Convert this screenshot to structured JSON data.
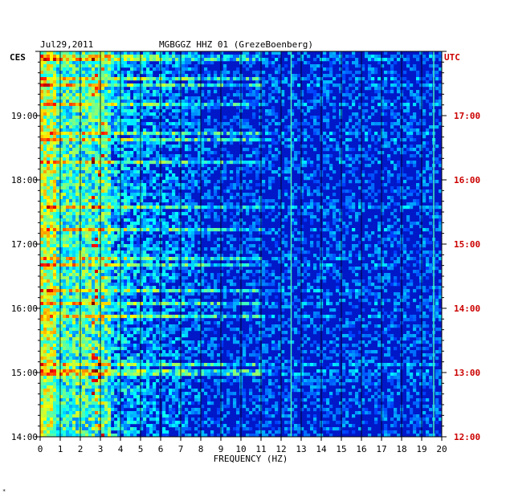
{
  "header": {
    "date": "Jul29,2011",
    "station": "MGBGGZ HHZ 01 (GrezeBoenberg)"
  },
  "left_tz": "CES",
  "right_tz": "UTC",
  "colors": {
    "background": "#ffffff",
    "spectrogram_base": "#0018c8",
    "grid": "#000000",
    "utc_text": "#cc0000",
    "text": "#000000"
  },
  "chart_data": {
    "type": "heatmap",
    "title": "MGBGGZ HHZ 01 (GrezeBoenberg)",
    "xlabel": "FREQUENCY (HZ)",
    "xlim": [
      0,
      20
    ],
    "x_ticks": [
      0,
      1,
      2,
      3,
      4,
      5,
      6,
      7,
      8,
      9,
      10,
      11,
      12,
      13,
      14,
      15,
      16,
      17,
      18,
      19,
      20
    ],
    "left_time_ticks": [
      "14:00",
      "15:00",
      "16:00",
      "17:00",
      "18:00",
      "19:00"
    ],
    "right_time_ticks": [
      "12:00",
      "13:00",
      "14:00",
      "15:00",
      "16:00",
      "17:00"
    ],
    "left_time_range_hours": [
      14.0,
      20.0
    ],
    "grid": true,
    "colormap": "jet",
    "features": [
      {
        "freq_hz": 12.5,
        "kind": "narrow persistent line"
      },
      {
        "freq_hz": 19.6,
        "kind": "narrow persistent line"
      },
      {
        "freq_range_hz": [
          0,
          8
        ],
        "kind": "high-energy band"
      }
    ]
  }
}
